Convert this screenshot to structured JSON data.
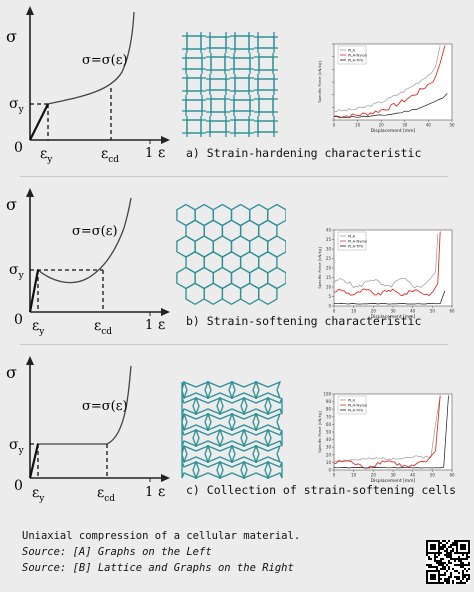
{
  "panels": [
    {
      "caption": "a) Strain-hardening characteristic",
      "equation": "σ=σ(ε)",
      "labels": {
        "sigma": "σ",
        "sigma_y": "σ",
        "sigma_y_sub": "y",
        "eps": "ε",
        "eps_y": "ε",
        "eps_y_sub": "y",
        "eps_cd": "ε",
        "eps_cd_sub": "cd",
        "zero": "0",
        "one": "1"
      },
      "mini_chart": {
        "ylabel": "Specific Force [kN/kg]",
        "xlabel": "Displacement [mm]",
        "legend": [
          "PLA",
          "PLA-Nylon",
          "PLA-TPU"
        ],
        "yticks": [
          "",
          "",
          "",
          "",
          "",
          "",
          ""
        ],
        "xticks": [
          "0",
          "10",
          "20",
          "30",
          "40",
          "50"
        ]
      }
    },
    {
      "caption": "b) Strain-softening characteristic",
      "equation": "σ=σ(ε)",
      "labels": {
        "sigma": "σ",
        "sigma_y": "σ",
        "sigma_y_sub": "y",
        "eps": "ε",
        "eps_y": "ε",
        "eps_y_sub": "y",
        "eps_cd": "ε",
        "eps_cd_sub": "cd",
        "zero": "0",
        "one": "1"
      },
      "mini_chart": {
        "ylabel": "Specific Force [kN/kg]",
        "xlabel": "Displacement [mm]",
        "legend": [
          "PLA",
          "PLA-Nylon",
          "PLA-TPU"
        ],
        "yticks": [
          "0",
          "5",
          "10",
          "15",
          "20",
          "25",
          "30",
          "35",
          "40"
        ],
        "xticks": [
          "0",
          "10",
          "20",
          "30",
          "40",
          "50",
          "60"
        ]
      }
    },
    {
      "caption": "c) Collection of strain-softening cells",
      "equation": "σ=σ(ε)",
      "labels": {
        "sigma": "σ",
        "sigma_y": "σ",
        "sigma_y_sub": "y",
        "eps": "ε",
        "eps_y": "ε",
        "eps_y_sub": "y",
        "eps_cd": "ε",
        "eps_cd_sub": "cd",
        "zero": "0",
        "one": "1"
      },
      "mini_chart": {
        "ylabel": "Specific Force [kN/kg]",
        "xlabel": "Displacement [mm]",
        "legend": [
          "PLA",
          "PLA-Nylon",
          "PLA-TPU"
        ],
        "yticks": [
          "0",
          "10",
          "20",
          "30",
          "40",
          "50",
          "60",
          "70",
          "80",
          "90",
          "100"
        ],
        "xticks": [
          "0",
          "10",
          "20",
          "30",
          "40",
          "50",
          "60"
        ]
      }
    }
  ],
  "footer": {
    "line1": "Uniaxial compression of a cellular material.",
    "line2": "Source: [A] Graphs on the Left",
    "line3": "Source: [B] Lattice and Graphs on the Right"
  },
  "colors": {
    "lattice": "#2a8f96",
    "pla": "#9a9a9a",
    "pla_nylon": "#d9322a",
    "pla_tpu": "#1a1a1a"
  }
}
